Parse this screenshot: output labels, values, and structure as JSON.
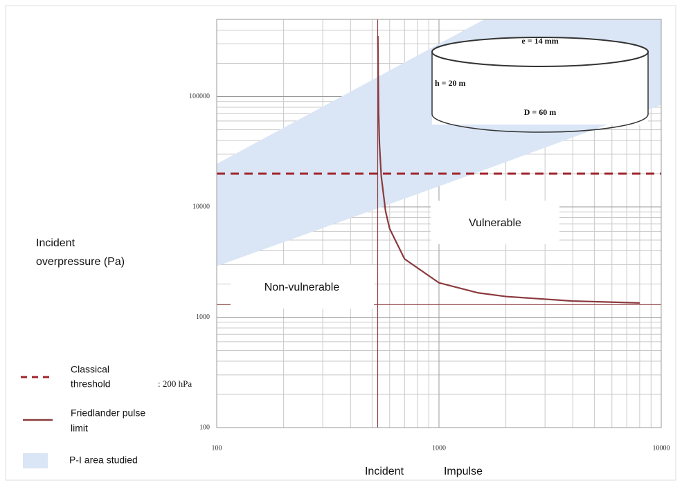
{
  "chart_data": {
    "type": "line",
    "log_x": true,
    "log_y": true,
    "grid": true,
    "xlim": [
      100,
      10000
    ],
    "ylim": [
      100,
      500000
    ],
    "xticks": [
      100,
      1000,
      10000
    ],
    "yticks": [
      100,
      1000,
      10000,
      100000
    ],
    "x_label": [
      "Incident",
      "Impulse"
    ],
    "y_label": [
      "Incident",
      "overpressure (Pa)"
    ],
    "band": {
      "name": "P-I area studied",
      "color": "#dae6f5",
      "x": [
        100,
        1600,
        10000
      ],
      "lower": [
        2900,
        21600,
        84000
      ],
      "upper": [
        24500,
        500000,
        500000
      ]
    },
    "series": [
      {
        "name": [
          "Classical",
          "threshold"
        ],
        "note": ": 200 hPa",
        "color": "#a0252c",
        "dash": true,
        "x": [
          100,
          10000
        ],
        "values": [
          20000,
          20000
        ]
      },
      {
        "name": [
          "Friedlander  pulse",
          "limit"
        ],
        "color": "#8b3a3e",
        "dash": false,
        "x": [
          531,
          535,
          540,
          550,
          575,
          600,
          700,
          1000,
          1500,
          2000,
          4000,
          8000
        ],
        "values": [
          353800,
          71800,
          36550,
          18925,
          9133,
          6336,
          3374,
          2050,
          1663,
          1540,
          1402,
          1347
        ]
      }
    ],
    "asymptotes": {
      "impulse": 530,
      "pressure": 1300
    },
    "annotations": [
      "Vulnerable",
      "Non-vulnerable"
    ],
    "inset": {
      "thickness": "e = 14 mm",
      "height": "h = 20 m",
      "diameter": "D = 60 m"
    }
  }
}
